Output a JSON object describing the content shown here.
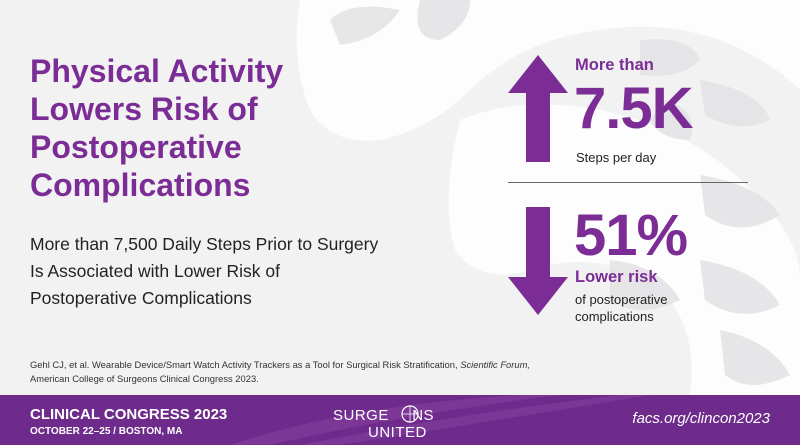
{
  "headline": {
    "lines": [
      "Physical Activity",
      "Lowers Risk of",
      "Postoperative",
      "Complications"
    ]
  },
  "subheadline": "More than 7,500 Daily Steps Prior to Surgery Is Associated with Lower Risk of Postoperative Complications",
  "stat_steps": {
    "prefix": "More than",
    "value": "7.5K",
    "caption": "Steps per day"
  },
  "stat_risk": {
    "value": "51%",
    "label": "Lower risk",
    "desc_lines": [
      "of postoperative",
      "complications"
    ]
  },
  "citation": {
    "before": "Gehl CJ, et al. Wearable Device/Smart Watch Activity Trackers as a Tool for Surgical Risk Stratification,",
    "journal": "Scientific Forum,",
    "line2": "American College of Surgeons Clinical Congress 2023."
  },
  "footer": {
    "event": "CLINICAL CONGRESS 2023",
    "dates": "OCTOBER 22–25 / BOSTON, MA",
    "logo_line1_a": "SURGE",
    "logo_line1_b": "NS",
    "logo_line2": "UNITED",
    "url": "facs.org/clincon2023"
  },
  "colors": {
    "accent": "#7b2d95",
    "footer": "#6e2b8b",
    "background": "#f2f2f3"
  }
}
